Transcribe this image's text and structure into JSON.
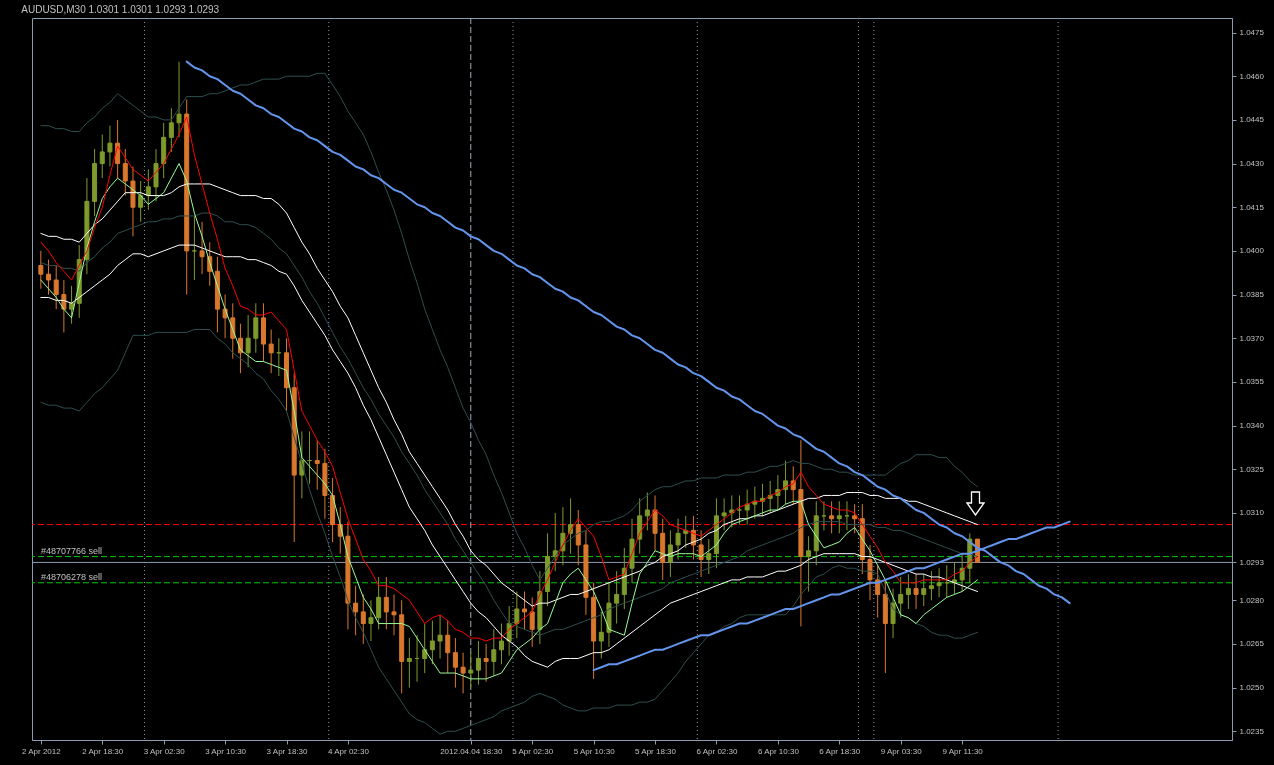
{
  "chart_data": {
    "type": "candlestick",
    "title": "AUDUSD,M30 1.0301 1.0301 1.0293 1.0293",
    "ylim": [
      1.0232,
      1.048
    ],
    "yticks": [
      1.0235,
      {
        "value": 1.025,
        "label": "1.0250"
      },
      1.0265,
      {
        "value": 1.028,
        "label": "1.0280"
      },
      1.0293,
      {
        "value": 1.031,
        "label": "1.0310"
      },
      1.0325,
      {
        "value": 1.034,
        "label": "1.0340"
      },
      1.0355,
      {
        "value": 1.037,
        "label": "1.0370"
      },
      1.0385,
      {
        "value": 1.04,
        "label": "1.0400"
      },
      1.0415,
      {
        "value": 1.043,
        "label": "1.0430"
      },
      1.0445,
      {
        "value": 1.046,
        "label": "1.0460"
      },
      1.0475
    ],
    "categories": [
      "2 Apr 2012",
      null,
      null,
      null,
      null,
      null,
      null,
      null,
      "2 Apr 18:30",
      null,
      null,
      null,
      null,
      null,
      null,
      null,
      "3 Apr 02:30",
      null,
      null,
      null,
      null,
      null,
      null,
      null,
      "3 Apr 10:30",
      null,
      null,
      null,
      null,
      null,
      null,
      null,
      "3 Apr 18:30",
      null,
      null,
      null,
      null,
      null,
      null,
      null,
      "4 Apr 02:30",
      null,
      null,
      null,
      null,
      null,
      null,
      null,
      null,
      null,
      null,
      null,
      null,
      null,
      null,
      null,
      "2012.04.04 18:30",
      null,
      null,
      null,
      null,
      null,
      null,
      null,
      "5 Apr 02:30",
      null,
      null,
      null,
      null,
      null,
      null,
      null,
      "5 Apr 10:30",
      null,
      null,
      null,
      null,
      null,
      null,
      null,
      "5 Apr 18:30",
      null,
      null,
      null,
      null,
      null,
      null,
      null,
      "6 Apr 02:30",
      null,
      null,
      null,
      null,
      null,
      null,
      null,
      "6 Apr 10:30",
      null,
      null,
      null,
      null,
      null,
      null,
      null,
      "6 Apr 18:30",
      null,
      null,
      null,
      null,
      null,
      null,
      null,
      "9 Apr 03:30",
      null,
      null,
      null,
      null,
      null,
      null,
      null,
      "9 Apr 11:30",
      null,
      null,
      null,
      null,
      null,
      null,
      null,
      null,
      null,
      null,
      null,
      null,
      null,
      null,
      null,
      null,
      null,
      null,
      null,
      null,
      null,
      null,
      null,
      null,
      null,
      null,
      null,
      null,
      null,
      null,
      null,
      null,
      null,
      null
    ],
    "ohlc": [
      [
        1.0395,
        1.04,
        1.0387,
        1.0392
      ],
      [
        1.0392,
        1.0397,
        1.0385,
        1.039
      ],
      [
        1.039,
        1.0395,
        1.038,
        1.0385
      ],
      [
        1.0385,
        1.039,
        1.0372,
        1.038
      ],
      [
        1.038,
        1.0388,
        1.0375,
        1.0382
      ],
      [
        1.0382,
        1.0402,
        1.0377,
        1.0397
      ],
      [
        1.0397,
        1.0425,
        1.0392,
        1.0417
      ],
      [
        1.0417,
        1.0435,
        1.0412,
        1.043
      ],
      [
        1.043,
        1.044,
        1.0425,
        1.0434
      ],
      [
        1.0434,
        1.0443,
        1.0429,
        1.0437
      ],
      [
        1.0437,
        1.0445,
        1.0425,
        1.043
      ],
      [
        1.043,
        1.0435,
        1.0419,
        1.0424
      ],
      [
        1.0424,
        1.0429,
        1.0405,
        1.0415
      ],
      [
        1.0415,
        1.0424,
        1.041,
        1.0419
      ],
      [
        1.0419,
        1.0428,
        1.0414,
        1.0422
      ],
      [
        1.0422,
        1.0435,
        1.0417,
        1.043
      ],
      [
        1.043,
        1.0444,
        1.0425,
        1.0439
      ],
      [
        1.0439,
        1.0449,
        1.0434,
        1.0444
      ],
      [
        1.0444,
        1.0465,
        1.0439,
        1.0447
      ],
      [
        1.0447,
        1.0452,
        1.0385,
        1.04
      ],
      [
        1.04,
        1.0412,
        1.039,
        1.04
      ],
      [
        1.04,
        1.041,
        1.0392,
        1.0398
      ],
      [
        1.0398,
        1.0403,
        1.0388,
        1.0393
      ],
      [
        1.0393,
        1.0398,
        1.0372,
        1.038
      ],
      [
        1.038,
        1.0385,
        1.037,
        1.0377
      ],
      [
        1.0377,
        1.0382,
        1.0363,
        1.037
      ],
      [
        1.037,
        1.0375,
        1.0358,
        1.0365
      ],
      [
        1.0365,
        1.0378,
        1.036,
        1.037
      ],
      [
        1.037,
        1.0382,
        1.0365,
        1.0377
      ],
      [
        1.0377,
        1.0382,
        1.0362,
        1.0368
      ],
      [
        1.0368,
        1.0373,
        1.0358,
        1.0365
      ],
      [
        1.0365,
        1.037,
        1.0357,
        1.0365
      ],
      [
        1.0365,
        1.037,
        1.0345,
        1.0353
      ],
      [
        1.0353,
        1.0358,
        1.03,
        1.0323
      ],
      [
        1.0323,
        1.0338,
        1.0315,
        1.0328
      ],
      [
        1.0328,
        1.0338,
        1.032,
        1.0328
      ],
      [
        1.0328,
        1.0335,
        1.0318,
        1.0327
      ],
      [
        1.0327,
        1.0332,
        1.0308,
        1.0316
      ],
      [
        1.0316,
        1.0322,
        1.03,
        1.0306
      ],
      [
        1.0306,
        1.0312,
        1.0296,
        1.0302
      ],
      [
        1.0302,
        1.0307,
        1.027,
        1.0279
      ],
      [
        1.0279,
        1.0285,
        1.0268,
        1.0276
      ],
      [
        1.0276,
        1.0282,
        1.0265,
        1.0272
      ],
      [
        1.0272,
        1.028,
        1.0266,
        1.0274
      ],
      [
        1.0274,
        1.0288,
        1.027,
        1.0281
      ],
      [
        1.0281,
        1.0288,
        1.027,
        1.0276
      ],
      [
        1.0276,
        1.0282,
        1.0268,
        1.0275
      ],
      [
        1.0275,
        1.028,
        1.0248,
        1.0259
      ],
      [
        1.0259,
        1.0267,
        1.025,
        1.026
      ],
      [
        1.026,
        1.0268,
        1.0252,
        1.026
      ],
      [
        1.026,
        1.0272,
        1.0255,
        1.0263
      ],
      [
        1.0263,
        1.0273,
        1.0258,
        1.0266
      ],
      [
        1.0266,
        1.0275,
        1.026,
        1.0268
      ],
      [
        1.0268,
        1.0273,
        1.0255,
        1.0262
      ],
      [
        1.0262,
        1.0267,
        1.025,
        1.0257
      ],
      [
        1.0257,
        1.0262,
        1.0248,
        1.0255
      ],
      [
        1.0255,
        1.0262,
        1.025,
        1.0256
      ],
      [
        1.0256,
        1.0266,
        1.0251,
        1.026
      ],
      [
        1.026,
        1.0265,
        1.0252,
        1.0259
      ],
      [
        1.0259,
        1.027,
        1.0254,
        1.0263
      ],
      [
        1.0263,
        1.0272,
        1.0258,
        1.0266
      ],
      [
        1.0266,
        1.0278,
        1.0261,
        1.0272
      ],
      [
        1.0272,
        1.0283,
        1.0267,
        1.0277
      ],
      [
        1.0277,
        1.0283,
        1.027,
        1.0276
      ],
      [
        1.0276,
        1.0281,
        1.0264,
        1.027
      ],
      [
        1.027,
        1.029,
        1.0265,
        1.0283
      ],
      [
        1.0283,
        1.0303,
        1.0278,
        1.0295
      ],
      [
        1.0295,
        1.031,
        1.029,
        1.0297
      ],
      [
        1.0297,
        1.0312,
        1.0292,
        1.0303
      ],
      [
        1.0303,
        1.0315,
        1.0296,
        1.0306
      ],
      [
        1.0306,
        1.0311,
        1.0292,
        1.0299
      ],
      [
        1.0299,
        1.0304,
        1.0275,
        1.0281
      ],
      [
        1.0281,
        1.0286,
        1.0253,
        1.0266
      ],
      [
        1.0266,
        1.0276,
        1.026,
        1.0269
      ],
      [
        1.0269,
        1.0286,
        1.0264,
        1.0279
      ],
      [
        1.0279,
        1.029,
        1.0272,
        1.0282
      ],
      [
        1.0282,
        1.0298,
        1.0277,
        1.0291
      ],
      [
        1.0291,
        1.0308,
        1.0286,
        1.0301
      ],
      [
        1.0301,
        1.0315,
        1.0296,
        1.0309
      ],
      [
        1.0309,
        1.0317,
        1.0304,
        1.0311
      ],
      [
        1.0311,
        1.0316,
        1.0297,
        1.0303
      ],
      [
        1.0303,
        1.0308,
        1.0287,
        1.0293
      ],
      [
        1.0293,
        1.0304,
        1.0288,
        1.0299
      ],
      [
        1.0299,
        1.0308,
        1.0294,
        1.0303
      ],
      [
        1.0303,
        1.0309,
        1.0298,
        1.0304
      ],
      [
        1.0304,
        1.0309,
        1.0294,
        1.0299
      ],
      [
        1.0299,
        1.0304,
        1.0288,
        1.0294
      ],
      [
        1.0294,
        1.0301,
        1.0289,
        1.0296
      ],
      [
        1.0296,
        1.0315,
        1.0291,
        1.0309
      ],
      [
        1.0309,
        1.0315,
        1.0304,
        1.031
      ],
      [
        1.031,
        1.0316,
        1.0305,
        1.0311
      ],
      [
        1.0311,
        1.0316,
        1.0306,
        1.0311
      ],
      [
        1.0311,
        1.0318,
        1.0306,
        1.0313
      ],
      [
        1.0313,
        1.0319,
        1.0308,
        1.0314
      ],
      [
        1.0314,
        1.032,
        1.0309,
        1.0315
      ],
      [
        1.0315,
        1.0321,
        1.031,
        1.0316
      ],
      [
        1.0316,
        1.0323,
        1.0311,
        1.0318
      ],
      [
        1.0318,
        1.0328,
        1.0313,
        1.0321
      ],
      [
        1.0321,
        1.0326,
        1.0313,
        1.0318
      ],
      [
        1.0318,
        1.0335,
        1.0271,
        1.0295
      ],
      [
        1.0295,
        1.0302,
        1.0283,
        1.0297
      ],
      [
        1.0297,
        1.0314,
        1.0292,
        1.0309
      ],
      [
        1.0309,
        1.0314,
        1.0304,
        1.0309
      ],
      [
        1.0309,
        1.0314,
        1.0303,
        1.0308
      ],
      [
        1.0308,
        1.0314,
        1.0303,
        1.0309
      ],
      [
        1.0309,
        1.0314,
        1.0304,
        1.0309
      ],
      [
        1.0309,
        1.0313,
        1.0303,
        1.0308
      ],
      [
        1.0308,
        1.0313,
        1.0289,
        1.0294
      ],
      [
        1.0294,
        1.0299,
        1.028,
        1.0287
      ],
      [
        1.0287,
        1.0292,
        1.0274,
        1.0282
      ],
      [
        1.0282,
        1.0287,
        1.0255,
        1.0272
      ],
      [
        1.0272,
        1.0284,
        1.0267,
        1.0279
      ],
      [
        1.0279,
        1.0288,
        1.0274,
        1.0282
      ],
      [
        1.0282,
        1.0289,
        1.0277,
        1.0284
      ],
      [
        1.0284,
        1.0289,
        1.0277,
        1.0282
      ],
      [
        1.0282,
        1.0289,
        1.0278,
        1.0284
      ],
      [
        1.0284,
        1.029,
        1.028,
        1.0285
      ],
      [
        1.0285,
        1.0291,
        1.0281,
        1.0286
      ],
      [
        1.0286,
        1.0292,
        1.0281,
        1.0286
      ],
      [
        1.0286,
        1.0293,
        1.0282,
        1.0287
      ],
      [
        1.0287,
        1.0296,
        1.0283,
        1.0291
      ],
      [
        1.0291,
        1.0303,
        1.0286,
        1.0301
      ],
      [
        1.0301,
        1.0301,
        1.0293,
        1.0293
      ],
      null,
      null,
      null,
      null,
      null,
      null,
      null,
      null,
      null,
      null,
      null,
      null,
      null,
      null,
      null,
      null,
      null,
      null,
      null,
      null,
      null,
      null,
      null,
      null,
      null,
      null,
      null,
      null,
      null,
      null,
      null,
      null
    ],
    "series": [
      {
        "type": "line",
        "color": "#2f4f4f",
        "values": [
          1.0443,
          1.0443,
          1.0442,
          1.0442,
          1.0441,
          1.0441,
          1.0444,
          1.0446,
          1.0449,
          1.0451,
          1.0454,
          1.0452,
          1.045,
          1.0448,
          1.0446,
          1.0446,
          1.0445,
          1.0445,
          1.0449,
          1.0453,
          1.0453,
          1.0453,
          1.0454,
          1.0454,
          1.0455,
          1.0456,
          1.0457,
          1.0457,
          1.0458,
          1.0459,
          1.0459,
          1.0459,
          1.046,
          1.046,
          1.046,
          1.046,
          1.0461,
          1.0461,
          1.0457,
          1.0453,
          1.0448,
          1.0444,
          1.044,
          1.0434,
          1.0427,
          1.0421,
          1.0414,
          1.0406,
          1.0397,
          1.0389,
          1.038,
          1.0373,
          1.0366,
          1.036,
          1.0353,
          1.0346,
          1.0341,
          1.0335,
          1.033,
          1.0323,
          1.0317,
          1.031,
          1.0303,
          1.0298,
          1.0292,
          1.0287,
          1.0291,
          1.0295,
          1.0299,
          1.0301,
          1.0303,
          1.0304,
          1.0306,
          1.0307,
          1.0307,
          1.0308,
          1.0309,
          1.0311,
          1.0314,
          1.0316,
          1.0318,
          1.0319,
          1.0319,
          1.032,
          1.0321,
          1.0321,
          1.0322,
          1.0322,
          1.0322,
          1.0323,
          1.0323,
          1.0323,
          1.0324,
          1.0324,
          1.0325,
          1.0326,
          1.0326,
          1.0327,
          1.0328,
          1.0327,
          1.0327,
          1.0326,
          1.0325,
          1.0325,
          1.0324,
          1.0324,
          1.0323,
          1.0323,
          1.0323,
          1.0323,
          1.0323,
          1.0325,
          1.0327,
          1.0328,
          1.033,
          1.033,
          1.033,
          1.0329,
          1.0329,
          1.0326,
          1.0324,
          1.0321,
          1.0319,
          null,
          null,
          null,
          null,
          null,
          null,
          null,
          null,
          null,
          null,
          null,
          null,
          null,
          null,
          null,
          null,
          null,
          null,
          null,
          null,
          null,
          null,
          null,
          null,
          null,
          null,
          null,
          null,
          null,
          null,
          null,
          null
        ]
      },
      {
        "type": "line",
        "color": "#2f4f4f",
        "values": [
          1.0396,
          1.0395,
          1.0395,
          1.0394,
          1.0394,
          1.0393,
          1.0396,
          1.0398,
          1.0401,
          1.0403,
          1.0406,
          1.0407,
          1.0408,
          1.0409,
          1.041,
          1.041,
          1.0411,
          1.0411,
          1.0412,
          1.0412,
          1.0412,
          1.0413,
          1.0413,
          1.0412,
          1.041,
          1.041,
          1.0409,
          1.0409,
          1.0408,
          1.0406,
          1.0404,
          1.0401,
          1.0399,
          1.0395,
          1.0391,
          1.0386,
          1.0382,
          1.0377,
          1.0372,
          1.0367,
          1.0363,
          1.0358,
          1.0353,
          1.0349,
          1.0344,
          1.034,
          1.0336,
          1.0331,
          1.0327,
          1.0323,
          1.0318,
          1.0314,
          1.031,
          1.0306,
          1.0301,
          1.0297,
          1.0293,
          1.0289,
          1.0285,
          1.028,
          1.0276,
          1.0272,
          1.0271,
          1.027,
          1.0269,
          1.0268,
          1.0269,
          1.027,
          1.027,
          1.0271,
          1.0272,
          1.0273,
          1.0274,
          1.0275,
          1.0277,
          1.0278,
          1.0279,
          1.028,
          1.0281,
          1.0282,
          1.0283,
          1.0284,
          1.0286,
          1.0287,
          1.0288,
          1.0289,
          1.029,
          1.0291,
          1.0292,
          1.0293,
          1.0294,
          1.0295,
          1.0297,
          1.0298,
          1.0299,
          1.03,
          1.0301,
          1.0302,
          1.0303,
          1.0305,
          1.0306,
          1.0307,
          1.0307,
          1.0307,
          1.0307,
          1.0306,
          1.0306,
          1.0306,
          1.0306,
          1.0305,
          1.0305,
          1.0304,
          1.0304,
          1.0303,
          1.0302,
          1.0301,
          1.03,
          1.0299,
          1.0298,
          1.0297,
          1.0296,
          1.0296,
          1.0295,
          null,
          null,
          null,
          null,
          null,
          null,
          null,
          null,
          null,
          null,
          null,
          null,
          null,
          null,
          null,
          null,
          null,
          null,
          null,
          null,
          null,
          null,
          null,
          null,
          null,
          null,
          null,
          null,
          null,
          null,
          null,
          null
        ]
      },
      {
        "type": "line",
        "color": "#2f4f4f",
        "values": [
          1.0348,
          1.0347,
          1.0347,
          1.0346,
          1.0346,
          1.0345,
          1.0348,
          1.0351,
          1.0353,
          1.0356,
          1.0359,
          1.0365,
          1.0371,
          1.0371,
          1.0371,
          1.0372,
          1.0372,
          1.0372,
          1.0372,
          1.0372,
          1.0373,
          1.0373,
          1.0373,
          1.037,
          1.0368,
          1.0365,
          1.0363,
          1.0361,
          1.0358,
          1.0356,
          1.0352,
          1.0349,
          1.0345,
          1.0336,
          1.0327,
          1.0318,
          1.031,
          1.0303,
          1.0295,
          1.0288,
          1.028,
          1.0274,
          1.0269,
          1.0263,
          1.0257,
          1.0253,
          1.0249,
          1.0245,
          1.0241,
          1.0239,
          1.0238,
          1.0236,
          1.0234,
          1.0235,
          1.0235,
          1.0236,
          1.0237,
          1.0238,
          1.0239,
          1.024,
          1.0242,
          1.0243,
          1.0244,
          1.0245,
          1.0247,
          1.0248,
          1.0247,
          1.0246,
          1.0244,
          1.0243,
          1.0242,
          1.0242,
          1.0243,
          1.0243,
          1.0243,
          1.0244,
          1.0244,
          1.0244,
          1.0245,
          1.0245,
          1.0246,
          1.0249,
          1.0252,
          1.0255,
          1.0259,
          1.0262,
          1.0265,
          1.0268,
          1.0269,
          1.0271,
          1.0272,
          1.0274,
          1.0275,
          1.0275,
          1.0275,
          1.0275,
          1.0275,
          1.0275,
          1.0278,
          1.0282,
          1.0285,
          1.0288,
          1.0289,
          1.0291,
          1.0292,
          1.0291,
          1.0291,
          1.029,
          1.029,
          1.0289,
          1.0283,
          1.0277,
          1.0275,
          1.0274,
          1.0272,
          1.0271,
          1.0269,
          1.0268,
          1.0268,
          1.0267,
          1.0267,
          1.0268,
          1.0269,
          null,
          null,
          null,
          null,
          null,
          null,
          null,
          null,
          null,
          null,
          null,
          null,
          null,
          null,
          null,
          null,
          null,
          null,
          null,
          null,
          null,
          null,
          null,
          null,
          null,
          null,
          null,
          null,
          null,
          null,
          null,
          null
        ]
      },
      {
        "type": "line",
        "color": "#ffffff",
        "values": [
          1.0406,
          1.0405,
          1.0405,
          1.0404,
          1.0404,
          1.0403,
          1.0406,
          1.0409,
          1.0411,
          1.0414,
          1.0417,
          1.042,
          1.042,
          1.042,
          1.0419,
          1.0419,
          1.0419,
          1.042,
          1.0422,
          1.0423,
          1.0423,
          1.0423,
          1.0423,
          1.0422,
          1.0421,
          1.042,
          1.0419,
          1.0419,
          1.0419,
          1.0418,
          1.0418,
          1.0416,
          1.0413,
          1.0408,
          1.0403,
          1.0399,
          1.0394,
          1.039,
          1.0386,
          1.0381,
          1.0377,
          1.0371,
          1.0365,
          1.0359,
          1.0353,
          1.0348,
          1.0342,
          1.0337,
          1.0331,
          1.0327,
          1.0323,
          1.0319,
          1.0315,
          1.0311,
          1.0306,
          1.0302,
          1.0297,
          1.0294,
          1.0292,
          1.0289,
          1.0286,
          1.0284,
          1.0282,
          1.028,
          1.0278,
          1.0279,
          1.0279,
          1.028,
          1.0281,
          1.0282,
          1.0282,
          1.0283,
          1.0284,
          1.0285,
          1.0286,
          1.0287,
          1.0288,
          1.0289,
          1.029,
          1.0292,
          1.0293,
          1.0295,
          1.0296,
          1.0297,
          1.0299,
          1.03,
          1.0301,
          1.0303,
          1.0304,
          1.0306,
          1.0307,
          1.0308,
          1.0308,
          1.0309,
          1.0309,
          1.031,
          1.0311,
          1.0312,
          1.0313,
          1.0314,
          1.0315,
          1.0315,
          1.0316,
          1.0316,
          1.0316,
          1.0317,
          1.0317,
          1.0317,
          1.0316,
          1.0316,
          1.0315,
          1.0315,
          1.0315,
          1.0314,
          1.0314,
          1.0313,
          1.0312,
          1.0311,
          1.031,
          1.0309,
          1.0308,
          1.0307,
          1.0306,
          null,
          null,
          null,
          null,
          null,
          null,
          null,
          null,
          null,
          null,
          null,
          null,
          null,
          null,
          null,
          null,
          null,
          null,
          null,
          null,
          null,
          null,
          null,
          null,
          null,
          null,
          null,
          null,
          null,
          null,
          null,
          null
        ]
      },
      {
        "type": "line",
        "color": "#ffffff",
        "values": [
          1.0384,
          1.0384,
          1.0383,
          1.0383,
          1.0382,
          1.0384,
          1.0386,
          1.0388,
          1.039,
          1.0392,
          1.0395,
          1.0397,
          1.0399,
          1.0399,
          1.0398,
          1.0399,
          1.04,
          1.0401,
          1.0402,
          1.0402,
          1.0402,
          1.0401,
          1.04,
          1.0399,
          1.0398,
          1.0398,
          1.0398,
          1.0397,
          1.0397,
          1.0396,
          1.0395,
          1.0393,
          1.0392,
          1.0388,
          1.0383,
          1.0379,
          1.0375,
          1.0371,
          1.0366,
          1.0362,
          1.0358,
          1.0353,
          1.0347,
          1.0342,
          1.0336,
          1.033,
          1.0324,
          1.0318,
          1.0312,
          1.0308,
          1.0304,
          1.0299,
          1.0295,
          1.0291,
          1.0287,
          1.0283,
          1.0279,
          1.0276,
          1.0274,
          1.0271,
          1.0268,
          1.0266,
          1.0264,
          1.0261,
          1.0259,
          1.0258,
          1.0257,
          1.0259,
          1.026,
          1.026,
          1.026,
          1.0261,
          1.0262,
          1.0262,
          1.0263,
          1.0265,
          1.0267,
          1.0269,
          1.0271,
          1.0273,
          1.0275,
          1.0277,
          1.0279,
          1.028,
          1.0281,
          1.0282,
          1.0283,
          1.0284,
          1.0285,
          1.0286,
          1.0287,
          1.0287,
          1.0288,
          1.0288,
          1.0288,
          1.0289,
          1.029,
          1.029,
          1.0291,
          1.0292,
          1.0294,
          1.0295,
          1.0296,
          1.0296,
          1.0296,
          1.0296,
          1.0296,
          1.0295,
          1.0295,
          1.0294,
          1.0293,
          1.0292,
          1.0291,
          1.029,
          1.0289,
          1.0289,
          1.0288,
          1.0288,
          1.0287,
          1.0286,
          1.0285,
          1.0284,
          1.0283,
          null,
          null,
          null,
          null,
          null,
          null,
          null,
          null,
          null,
          null,
          null,
          null,
          null,
          null,
          null,
          null,
          null,
          null,
          null,
          null,
          null,
          null,
          null,
          null,
          null,
          null,
          null,
          null,
          null,
          null,
          null,
          null
        ]
      },
      {
        "type": "line",
        "color": "#98fb98",
        "values": [
          1.039,
          1.0387,
          1.0384,
          1.038,
          1.0377,
          1.0389,
          1.0401,
          1.041,
          1.0418,
          1.0422,
          1.0425,
          1.0423,
          1.0421,
          1.0419,
          1.0416,
          1.0418,
          1.042,
          1.0425,
          1.043,
          1.0424,
          1.0413,
          1.0405,
          1.0396,
          1.0388,
          1.038,
          1.0373,
          1.0366,
          1.0364,
          1.0362,
          1.0362,
          1.0361,
          1.036,
          1.0359,
          1.0345,
          1.0329,
          1.0326,
          1.0323,
          1.032,
          1.0316,
          1.0306,
          1.0295,
          1.0288,
          1.0281,
          1.0277,
          1.0272,
          1.0272,
          1.0272,
          1.0272,
          1.0271,
          1.0267,
          1.0263,
          1.0259,
          1.0255,
          1.0255,
          1.0255,
          1.0254,
          1.0253,
          1.0253,
          1.0253,
          1.0254,
          1.0255,
          1.0259,
          1.0263,
          1.0265,
          1.0267,
          1.027,
          1.0272,
          1.0279,
          1.0286,
          1.0289,
          1.0291,
          1.0287,
          1.0283,
          1.0277,
          1.027,
          1.0269,
          1.0268,
          1.0279,
          1.0289,
          1.0293,
          1.0297,
          1.0296,
          1.0295,
          1.0296,
          1.0296,
          1.0296,
          1.0295,
          1.0297,
          1.0299,
          1.0303,
          1.0306,
          1.0307,
          1.0308,
          1.0309,
          1.031,
          1.0311,
          1.0311,
          1.0313,
          1.0314,
          1.0314,
          1.0306,
          1.0302,
          1.0298,
          1.0299,
          1.03,
          1.0303,
          1.0305,
          1.0301,
          1.0297,
          1.0292,
          1.0287,
          1.0281,
          1.0275,
          1.0274,
          1.0272,
          1.0275,
          1.0277,
          1.0279,
          1.0281,
          1.0282,
          1.0283,
          1.0285,
          1.0287,
          null,
          null,
          null,
          null,
          null,
          null,
          null,
          null,
          null,
          null,
          null,
          null,
          null,
          null,
          null,
          null,
          null,
          null,
          null,
          null,
          null,
          null,
          null,
          null,
          null,
          null,
          null,
          null,
          null,
          null,
          null,
          null
        ]
      },
      {
        "type": "line",
        "color": "#ff0000",
        "values": [
          1.0403,
          1.04,
          1.0396,
          1.0393,
          1.039,
          1.0395,
          1.04,
          1.0408,
          1.0415,
          1.0426,
          1.0436,
          1.0432,
          1.0428,
          1.0426,
          1.0424,
          1.0427,
          1.043,
          1.0435,
          1.044,
          1.0446,
          1.0433,
          1.0423,
          1.0413,
          1.0404,
          1.0394,
          1.0388,
          1.0381,
          1.038,
          1.0378,
          1.0378,
          1.0379,
          1.0376,
          1.0373,
          1.0359,
          1.0345,
          1.034,
          1.0335,
          1.0331,
          1.0326,
          1.0317,
          1.0308,
          1.0301,
          1.0294,
          1.029,
          1.0285,
          1.0285,
          1.0284,
          1.0282,
          1.028,
          1.0276,
          1.0272,
          1.0274,
          1.0275,
          1.0273,
          1.027,
          1.0269,
          1.0267,
          1.0267,
          1.0266,
          1.0267,
          1.0267,
          1.027,
          1.0272,
          1.0274,
          1.0276,
          1.0282,
          1.0287,
          1.0293,
          1.0299,
          1.0304,
          1.0308,
          1.0305,
          1.0302,
          1.0295,
          1.0287,
          1.0288,
          1.0289,
          1.0296,
          1.0303,
          1.0307,
          1.0311,
          1.0309,
          1.0306,
          1.0305,
          1.0304,
          1.0303,
          1.0302,
          1.0304,
          1.0306,
          1.0308,
          1.031,
          1.0312,
          1.0313,
          1.0314,
          1.0314,
          1.0316,
          1.0317,
          1.0319,
          1.032,
          1.0324,
          1.0319,
          1.0316,
          1.0313,
          1.0312,
          1.0311,
          1.0311,
          1.031,
          1.0306,
          1.0302,
          1.0298,
          1.0293,
          1.029,
          1.0286,
          1.0286,
          1.0286,
          1.0287,
          1.0287,
          1.0287,
          1.0287,
          1.0289,
          1.029,
          1.0293,
          1.0295,
          null,
          null,
          null,
          null,
          null,
          null,
          null,
          null,
          null,
          null,
          null,
          null,
          null,
          null,
          null,
          null,
          null,
          null,
          null,
          null,
          null,
          null,
          null,
          null,
          null,
          null,
          null,
          null,
          null,
          null,
          null,
          null
        ]
      },
      {
        "type": "line",
        "color": "#6495ed",
        "values": [
          null,
          null,
          null,
          null,
          null,
          null,
          null,
          null,
          null,
          null,
          null,
          null,
          null,
          null,
          null,
          null,
          null,
          null,
          null,
          1.0465,
          1.0463,
          1.0462,
          1.046,
          1.0459,
          1.0457,
          1.0455,
          1.0454,
          1.0452,
          1.045,
          1.0449,
          1.0447,
          1.0446,
          1.0444,
          1.0442,
          1.0441,
          1.0439,
          1.0438,
          1.0436,
          1.0434,
          1.0433,
          1.0431,
          1.0429,
          1.0428,
          1.0426,
          1.0425,
          1.0423,
          1.0421,
          1.042,
          1.0418,
          1.0416,
          1.0415,
          1.0413,
          1.0412,
          1.041,
          1.0408,
          1.0407,
          1.0405,
          1.0404,
          1.0402,
          1.04,
          1.0399,
          1.0397,
          1.0395,
          1.0394,
          1.0392,
          1.0391,
          1.0389,
          1.0387,
          1.0386,
          1.0384,
          1.0383,
          1.0381,
          1.0379,
          1.0378,
          1.0376,
          1.0374,
          1.0373,
          1.0371,
          1.037,
          1.0368,
          1.0366,
          1.0365,
          1.0363,
          1.0361,
          1.036,
          1.0358,
          1.0357,
          1.0355,
          1.0353,
          1.0352,
          1.035,
          1.0349,
          1.0347,
          1.0345,
          1.0344,
          1.0342,
          1.034,
          1.0339,
          1.0337,
          1.0336,
          1.0334,
          1.0332,
          1.0331,
          1.0329,
          1.0327,
          1.0326,
          1.0324,
          1.0323,
          1.0321,
          1.0319,
          1.0318,
          1.0316,
          1.0315,
          1.0313,
          1.0311,
          1.031,
          1.0308,
          1.0306,
          1.0305,
          1.0303,
          1.0302,
          1.03,
          1.0298,
          1.0297,
          1.0295,
          1.0293,
          1.0292,
          1.029,
          1.0289,
          1.0287,
          1.0285,
          1.0284,
          1.0282,
          1.0281,
          1.0279,
          null,
          null,
          null,
          null,
          null,
          null,
          null,
          null,
          null,
          null,
          null,
          null,
          null,
          null,
          null,
          null,
          null,
          null,
          null,
          null
        ]
      },
      {
        "type": "line",
        "color": "#6495ed",
        "values": [
          null,
          null,
          null,
          null,
          null,
          null,
          null,
          null,
          null,
          null,
          null,
          null,
          null,
          null,
          null,
          null,
          null,
          null,
          null,
          null,
          null,
          null,
          null,
          null,
          null,
          null,
          null,
          null,
          null,
          null,
          null,
          null,
          null,
          null,
          null,
          null,
          null,
          null,
          null,
          null,
          null,
          null,
          null,
          null,
          null,
          null,
          null,
          null,
          null,
          null,
          null,
          null,
          null,
          null,
          null,
          null,
          null,
          null,
          null,
          null,
          null,
          null,
          null,
          null,
          null,
          null,
          null,
          null,
          null,
          null,
          null,
          null,
          1.0256,
          1.0257,
          1.0258,
          1.0258,
          1.0259,
          1.026,
          1.0261,
          1.0262,
          1.0263,
          1.0263,
          1.0264,
          1.0265,
          1.0266,
          1.0267,
          1.0268,
          1.0268,
          1.0269,
          1.027,
          1.0271,
          1.0272,
          1.0272,
          1.0273,
          1.0274,
          1.0275,
          1.0276,
          1.0277,
          1.0277,
          1.0278,
          1.0279,
          1.028,
          1.0281,
          1.0282,
          1.0282,
          1.0283,
          1.0284,
          1.0285,
          1.0286,
          1.0286,
          1.0287,
          1.0288,
          1.0289,
          1.029,
          1.0291,
          1.0291,
          1.0292,
          1.0293,
          1.0294,
          1.0295,
          1.0296,
          1.0296,
          1.0297,
          1.0298,
          1.0299,
          1.03,
          1.0301,
          1.0301,
          1.0302,
          1.0303,
          1.0304,
          1.0305,
          1.0305,
          1.0306,
          1.0307,
          null,
          null,
          null,
          null,
          null,
          null,
          null,
          null,
          null,
          null,
          null,
          null,
          null,
          null,
          null,
          null,
          null,
          null,
          null,
          null
        ]
      }
    ],
    "ref_lines": [
      {
        "axis": "y",
        "value": 1.0306,
        "color": "#ff0000",
        "line_style": "dashed"
      },
      {
        "axis": "y",
        "value": 1.0295,
        "label": "#48707766 sell",
        "color": "#00c800",
        "line_style": "dashed"
      },
      {
        "axis": "y",
        "value": 1.0293,
        "color": "#8b9bb0",
        "line_style": "solid"
      },
      {
        "axis": "y",
        "value": 1.0286,
        "label": "#48706278 sell",
        "color": "#00c800",
        "line_style": "dashed"
      },
      {
        "axis": "x",
        "value": "2012.04.04 18:30",
        "color": "#a0a8b8",
        "line_style": "dashed"
      }
    ]
  }
}
